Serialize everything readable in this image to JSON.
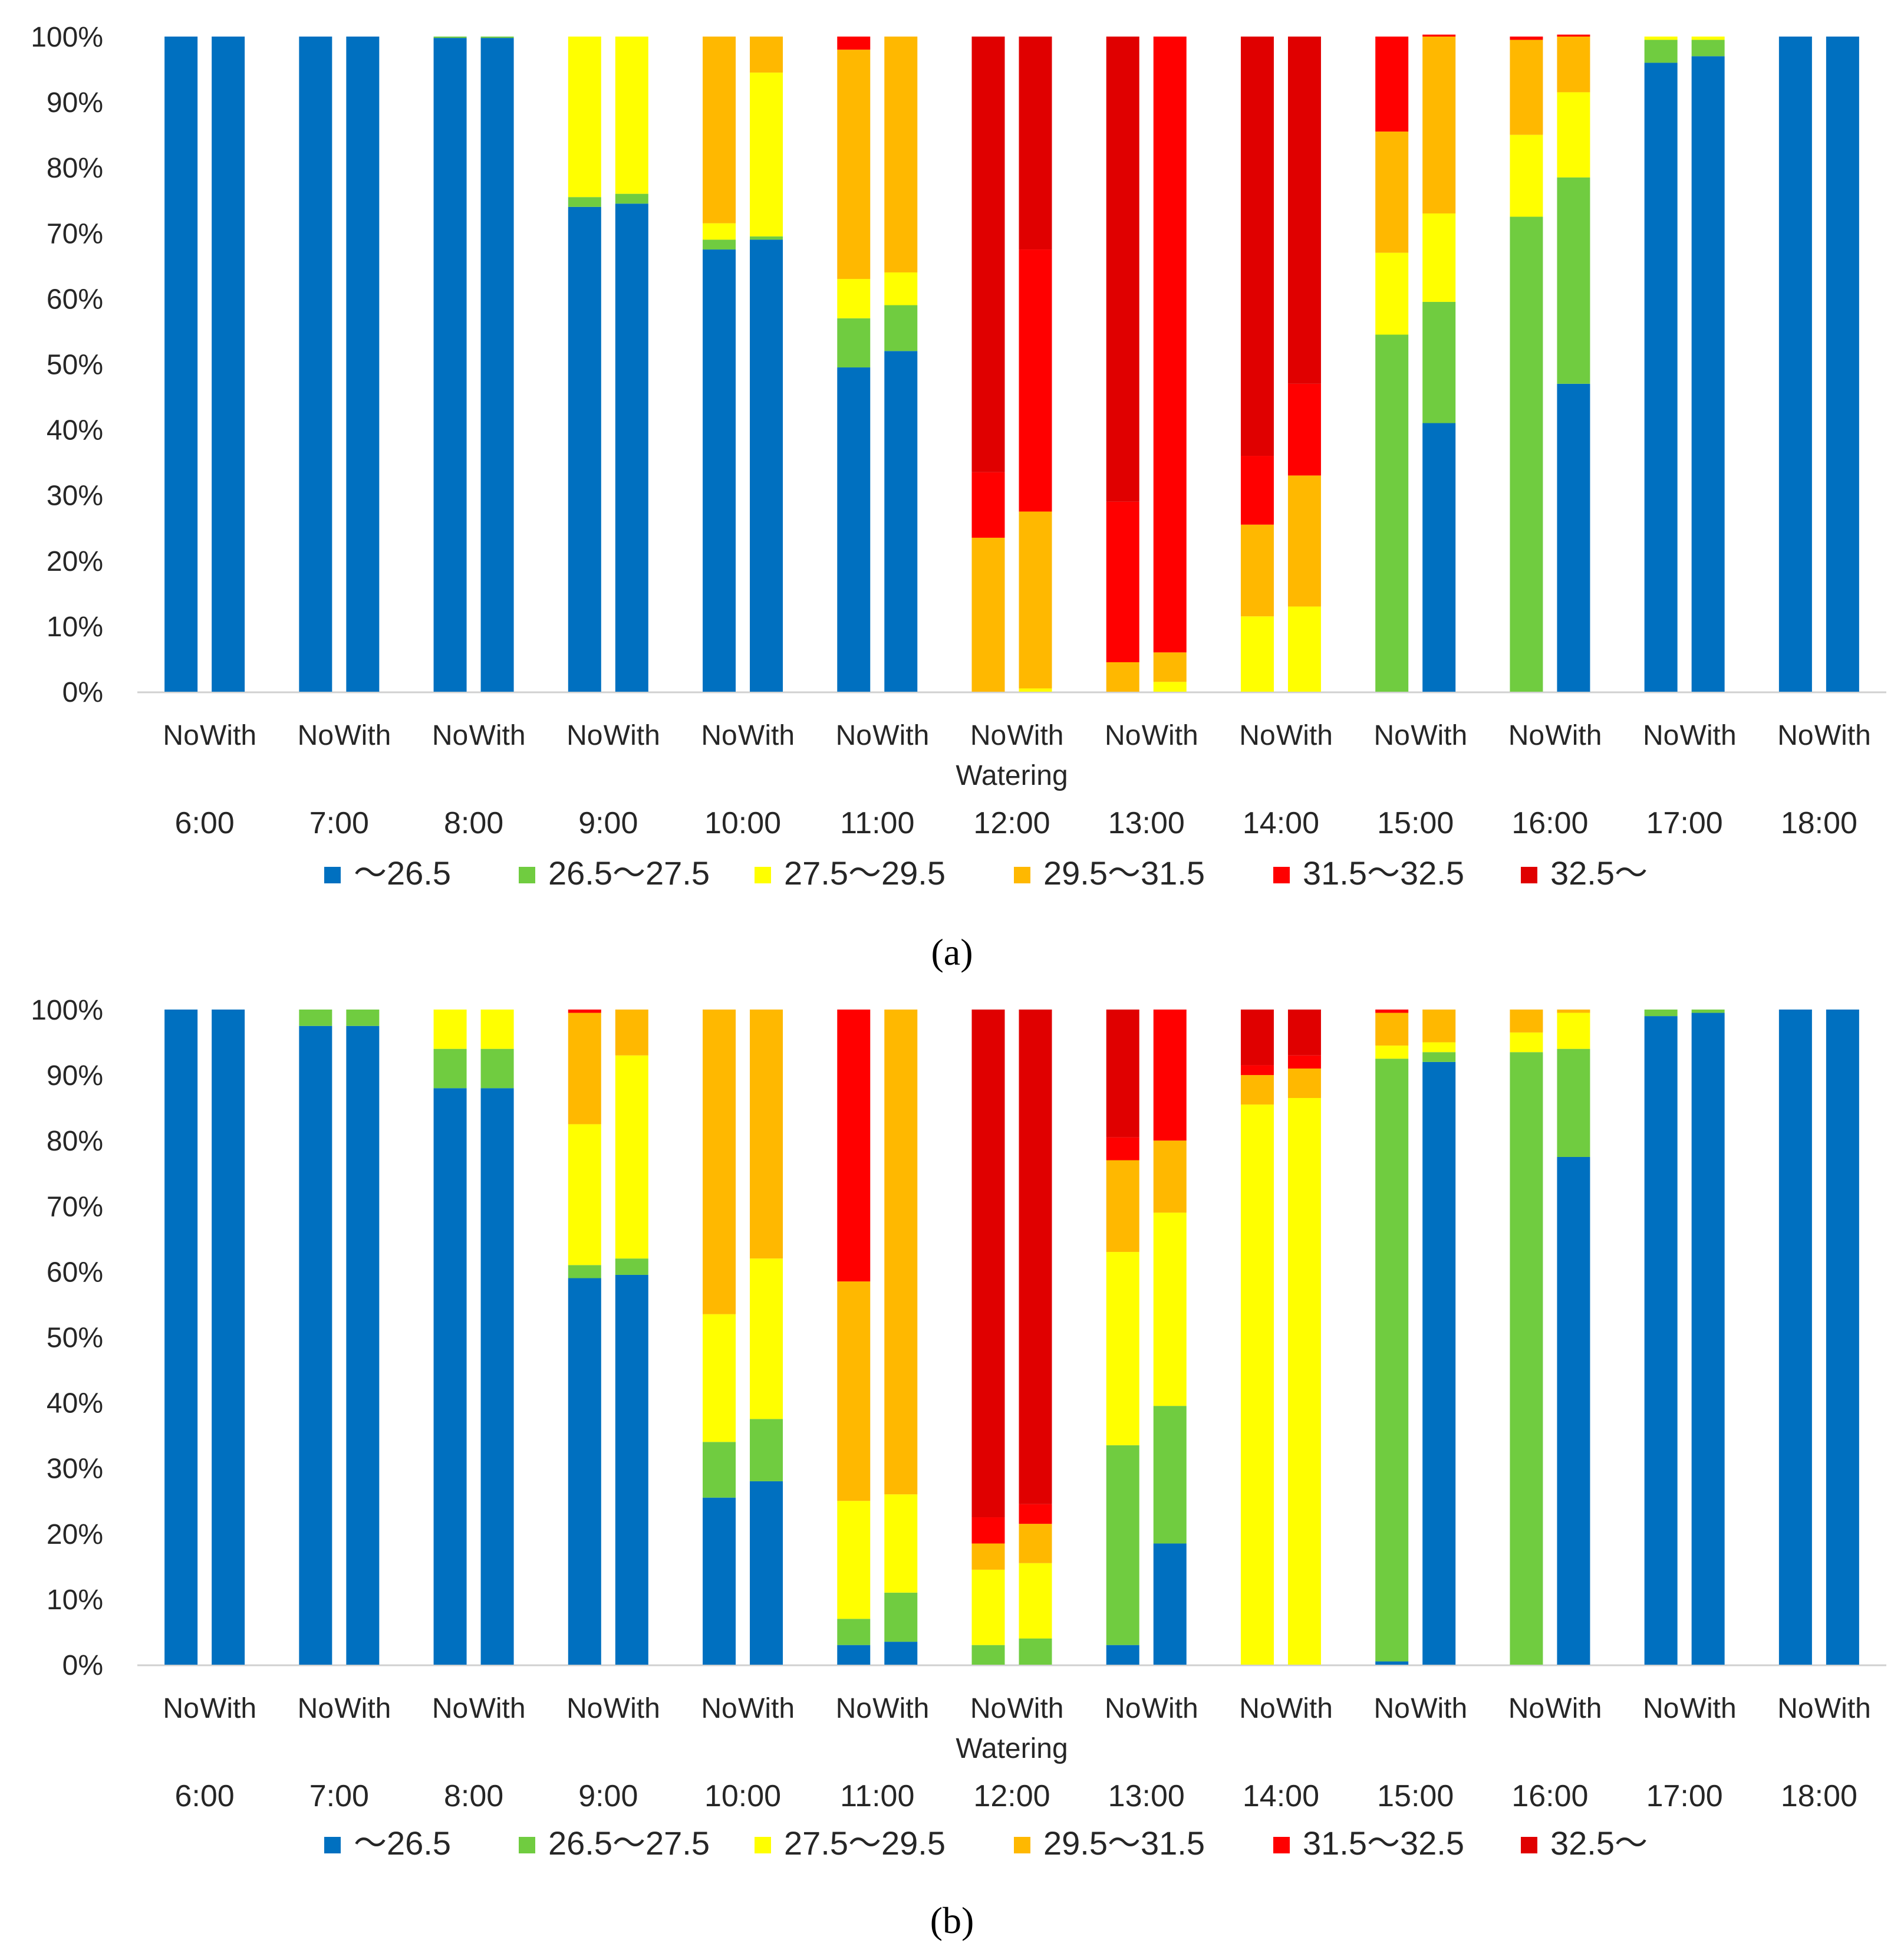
{
  "figure": {
    "charts": [
      {
        "panel_label": "(a)",
        "times": [
          "6:00",
          "7:00",
          "8:00",
          "9:00",
          "10:00",
          "11:00",
          "12:00",
          "13:00",
          "14:00",
          "15:00",
          "16:00",
          "17:00",
          "18:00"
        ],
        "bins": [
          {
            "label": "～26.5",
            "color": "#0070C0"
          },
          {
            "label": "26.5～27.5",
            "color": "#70CC40"
          },
          {
            "label": "27.5～29.5",
            "color": "#FFFF00"
          },
          {
            "label": "29.5～31.5",
            "color": "#FFB800"
          },
          {
            "label": "31.5～32.5",
            "color": "#FF0000"
          },
          {
            "label": "32.5～",
            "color": "#E00000"
          }
        ]
      },
      {
        "panel_label": "(b)",
        "times": [
          "6:00",
          "7:00",
          "8:00",
          "9:00",
          "10:00",
          "11:00",
          "12:00",
          "13:00",
          "14:00",
          "15:00",
          "16:00",
          "17:00",
          "18:00"
        ],
        "bins": [
          {
            "label": "～26.5",
            "color": "#0070C0"
          },
          {
            "label": "26.5～27.5",
            "color": "#70CC40"
          },
          {
            "label": "27.5～29.5",
            "color": "#FFFF00"
          },
          {
            "label": "29.5～31.5",
            "color": "#FFB800"
          },
          {
            "label": "31.5～32.5",
            "color": "#FF0000"
          },
          {
            "label": "32.5～",
            "color": "#E00000"
          }
        ]
      }
    ]
  },
  "chart_data": [
    {
      "type": "bar",
      "stacked": true,
      "xlabel": "Watering",
      "ylabel": "",
      "ylim": [
        0,
        100
      ],
      "y_tick_labels": [
        "0%",
        "10%",
        "20%",
        "30%",
        "40%",
        "50%",
        "60%",
        "70%",
        "80%",
        "90%",
        "100%"
      ],
      "groups": [
        "6:00",
        "7:00",
        "8:00",
        "9:00",
        "10:00",
        "11:00",
        "12:00",
        "13:00",
        "14:00",
        "15:00",
        "16:00",
        "17:00",
        "18:00"
      ],
      "categories": [
        "No",
        "With"
      ],
      "legend_position": "bottom",
      "grid": false,
      "series_labels": [
        "～26.5",
        "26.5～27.5",
        "27.5～29.5",
        "29.5～31.5",
        "31.5～32.5",
        "32.5～"
      ],
      "bars": [
        {
          "group": "6:00",
          "category": "No",
          "values": [
            100,
            0,
            0,
            0,
            0,
            0
          ]
        },
        {
          "group": "6:00",
          "category": "With",
          "values": [
            100,
            0,
            0,
            0,
            0,
            0
          ]
        },
        {
          "group": "7:00",
          "category": "No",
          "values": [
            100,
            0,
            0,
            0,
            0,
            0
          ]
        },
        {
          "group": "7:00",
          "category": "With",
          "values": [
            100,
            0,
            0,
            0,
            0,
            0
          ]
        },
        {
          "group": "8:00",
          "category": "No",
          "values": [
            99.8,
            0.2,
            0,
            0,
            0,
            0
          ]
        },
        {
          "group": "8:00",
          "category": "With",
          "values": [
            99.8,
            0.2,
            0,
            0,
            0,
            0
          ]
        },
        {
          "group": "9:00",
          "category": "No",
          "values": [
            74,
            1.5,
            24.5,
            0,
            0,
            0
          ]
        },
        {
          "group": "9:00",
          "category": "With",
          "values": [
            74.5,
            1.5,
            24,
            0,
            0,
            0
          ]
        },
        {
          "group": "10:00",
          "category": "No",
          "values": [
            67.5,
            1.5,
            2.5,
            28.5,
            0,
            0
          ]
        },
        {
          "group": "10:00",
          "category": "With",
          "values": [
            69,
            0.5,
            25,
            5.5,
            0,
            0
          ]
        },
        {
          "group": "11:00",
          "category": "No",
          "values": [
            49.5,
            7.5,
            6,
            35,
            2,
            0
          ]
        },
        {
          "group": "11:00",
          "category": "With",
          "values": [
            52,
            7,
            5,
            36,
            0,
            0
          ]
        },
        {
          "group": "12:00",
          "category": "No",
          "values": [
            0,
            0,
            0,
            23.5,
            10,
            66.5
          ]
        },
        {
          "group": "12:00",
          "category": "With",
          "values": [
            0,
            0,
            0.5,
            27,
            40,
            32.5
          ]
        },
        {
          "group": "13:00",
          "category": "No",
          "values": [
            0,
            0,
            0,
            4.5,
            24.5,
            71
          ]
        },
        {
          "group": "13:00",
          "category": "With",
          "values": [
            0,
            0,
            1.5,
            4.5,
            94,
            0
          ]
        },
        {
          "group": "14:00",
          "category": "No",
          "values": [
            0,
            0,
            11.5,
            14,
            10.5,
            64
          ]
        },
        {
          "group": "14:00",
          "category": "With",
          "values": [
            0,
            0,
            13,
            20,
            14,
            53
          ]
        },
        {
          "group": "15:00",
          "category": "No",
          "values": [
            0,
            54.5,
            12.5,
            18.5,
            14.5,
            0
          ]
        },
        {
          "group": "15:00",
          "category": "With",
          "values": [
            41,
            18.5,
            13.5,
            27,
            0.3,
            0
          ]
        },
        {
          "group": "16:00",
          "category": "No",
          "values": [
            0,
            72.5,
            12.5,
            14.5,
            0.5,
            0
          ]
        },
        {
          "group": "16:00",
          "category": "With",
          "values": [
            47,
            31.5,
            13,
            8.5,
            0.3,
            0
          ]
        },
        {
          "group": "17:00",
          "category": "No",
          "values": [
            96,
            3.5,
            0.5,
            0,
            0,
            0
          ]
        },
        {
          "group": "17:00",
          "category": "With",
          "values": [
            97,
            2.5,
            0.5,
            0,
            0,
            0
          ]
        },
        {
          "group": "18:00",
          "category": "No",
          "values": [
            100,
            0,
            0,
            0,
            0,
            0
          ]
        },
        {
          "group": "18:00",
          "category": "With",
          "values": [
            100,
            0,
            0,
            0,
            0,
            0
          ]
        }
      ]
    },
    {
      "type": "bar",
      "stacked": true,
      "xlabel": "Watering",
      "ylabel": "",
      "ylim": [
        0,
        100
      ],
      "y_tick_labels": [
        "0%",
        "10%",
        "20%",
        "30%",
        "40%",
        "50%",
        "60%",
        "70%",
        "80%",
        "90%",
        "100%"
      ],
      "groups": [
        "6:00",
        "7:00",
        "8:00",
        "9:00",
        "10:00",
        "11:00",
        "12:00",
        "13:00",
        "14:00",
        "15:00",
        "16:00",
        "17:00",
        "18:00"
      ],
      "categories": [
        "No",
        "With"
      ],
      "legend_position": "bottom",
      "grid": false,
      "series_labels": [
        "～26.5",
        "26.5～27.5",
        "27.5～29.5",
        "29.5～31.5",
        "31.5～32.5",
        "32.5～"
      ],
      "bars": [
        {
          "group": "6:00",
          "category": "No",
          "values": [
            100,
            0,
            0,
            0,
            0,
            0
          ]
        },
        {
          "group": "6:00",
          "category": "With",
          "values": [
            100,
            0,
            0,
            0,
            0,
            0
          ]
        },
        {
          "group": "7:00",
          "category": "No",
          "values": [
            97.5,
            2.5,
            0,
            0,
            0,
            0
          ]
        },
        {
          "group": "7:00",
          "category": "With",
          "values": [
            97.5,
            2.5,
            0,
            0,
            0,
            0
          ]
        },
        {
          "group": "8:00",
          "category": "No",
          "values": [
            88,
            6,
            6,
            0,
            0,
            0
          ]
        },
        {
          "group": "8:00",
          "category": "With",
          "values": [
            88,
            6,
            6,
            0,
            0,
            0
          ]
        },
        {
          "group": "9:00",
          "category": "No",
          "values": [
            59,
            2,
            21.5,
            17,
            0.5,
            0
          ]
        },
        {
          "group": "9:00",
          "category": "With",
          "values": [
            59.5,
            2.5,
            31,
            7,
            0,
            0
          ]
        },
        {
          "group": "10:00",
          "category": "No",
          "values": [
            25.5,
            8.5,
            19.5,
            46.5,
            0,
            0
          ]
        },
        {
          "group": "10:00",
          "category": "With",
          "values": [
            28,
            9.5,
            24.5,
            38,
            0,
            0
          ]
        },
        {
          "group": "11:00",
          "category": "No",
          "values": [
            3,
            4,
            18,
            33.5,
            41.5,
            0
          ]
        },
        {
          "group": "11:00",
          "category": "With",
          "values": [
            3.5,
            7.5,
            15,
            74,
            0,
            0
          ]
        },
        {
          "group": "12:00",
          "category": "No",
          "values": [
            0,
            3,
            11.5,
            4,
            4,
            77.5
          ]
        },
        {
          "group": "12:00",
          "category": "With",
          "values": [
            0,
            4,
            11.5,
            6,
            3,
            75.5
          ]
        },
        {
          "group": "13:00",
          "category": "No",
          "values": [
            3,
            30.5,
            29.5,
            14,
            3.5,
            19.5
          ]
        },
        {
          "group": "13:00",
          "category": "With",
          "values": [
            18.5,
            21,
            29.5,
            11,
            20,
            0
          ]
        },
        {
          "group": "14:00",
          "category": "No",
          "values": [
            0,
            0,
            85.5,
            4.5,
            1.5,
            8.5
          ]
        },
        {
          "group": "14:00",
          "category": "With",
          "values": [
            0,
            0,
            86.5,
            4.5,
            2,
            7
          ]
        },
        {
          "group": "15:00",
          "category": "No",
          "values": [
            0.5,
            92,
            2,
            5,
            0.5,
            0
          ]
        },
        {
          "group": "15:00",
          "category": "With",
          "values": [
            92,
            1.5,
            1.5,
            5,
            0,
            0
          ]
        },
        {
          "group": "16:00",
          "category": "No",
          "values": [
            0,
            93.5,
            3,
            3.5,
            0,
            0
          ]
        },
        {
          "group": "16:00",
          "category": "With",
          "values": [
            77.5,
            16.5,
            5.5,
            0.5,
            0,
            0
          ]
        },
        {
          "group": "17:00",
          "category": "No",
          "values": [
            99,
            1,
            0,
            0,
            0,
            0
          ]
        },
        {
          "group": "17:00",
          "category": "With",
          "values": [
            99.5,
            0.5,
            0,
            0,
            0,
            0
          ]
        },
        {
          "group": "18:00",
          "category": "No",
          "values": [
            100,
            0,
            0,
            0,
            0,
            0
          ]
        },
        {
          "group": "18:00",
          "category": "With",
          "values": [
            100,
            0,
            0,
            0,
            0,
            0
          ]
        }
      ]
    }
  ]
}
